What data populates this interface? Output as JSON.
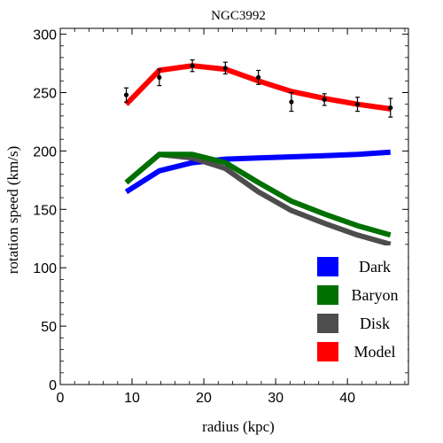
{
  "chart_data": {
    "type": "line",
    "title": "NGC3992",
    "xlabel": "radius (kpc)",
    "ylabel": "rotation speed (km/s)",
    "xlim": [
      0,
      48.5
    ],
    "ylim": [
      0,
      305
    ],
    "x_ticks": [
      0,
      10,
      20,
      30,
      40
    ],
    "y_ticks": [
      0,
      50,
      100,
      150,
      200,
      250,
      300
    ],
    "grid": false,
    "legend_position": "bottom-right",
    "series": [
      {
        "name": "Dark",
        "color": "#0000ff",
        "x": [
          9.2,
          13.8,
          18.4,
          23.0,
          27.6,
          32.2,
          36.8,
          41.4,
          46.0
        ],
        "y": [
          165,
          183,
          190,
          193,
          194,
          195,
          196,
          197,
          199
        ]
      },
      {
        "name": "Baryon",
        "color": "#007000",
        "x": [
          9.2,
          13.8,
          18.4,
          23.0,
          27.6,
          32.2,
          36.8,
          41.4,
          46.0
        ],
        "y": [
          173,
          197,
          197,
          190,
          173,
          157,
          146,
          136,
          128
        ]
      },
      {
        "name": "Disk",
        "color": "#4d4d4d",
        "x": [
          9.2,
          13.8,
          18.4,
          23.0,
          27.6,
          32.2,
          36.8,
          41.4,
          46.0
        ],
        "y": [
          173,
          197,
          194,
          185,
          165,
          149,
          138,
          128,
          120
        ]
      },
      {
        "name": "Model",
        "color": "#ff0000",
        "x": [
          9.2,
          13.8,
          18.4,
          23.0,
          27.6,
          32.2,
          36.8,
          41.4,
          46.0
        ],
        "y": [
          240,
          269,
          273,
          270,
          260,
          251,
          245,
          240,
          236
        ]
      }
    ],
    "observed": {
      "x": [
        9.2,
        13.8,
        18.4,
        23.0,
        27.6,
        32.2,
        36.8,
        41.4,
        46.0
      ],
      "y": [
        248,
        263,
        273,
        271,
        263,
        242,
        244,
        240,
        237
      ],
      "err": [
        6,
        7,
        5,
        5,
        6,
        8,
        5,
        6,
        8
      ]
    },
    "legend": [
      "Dark",
      "Baryon",
      "Disk",
      "Model"
    ]
  }
}
